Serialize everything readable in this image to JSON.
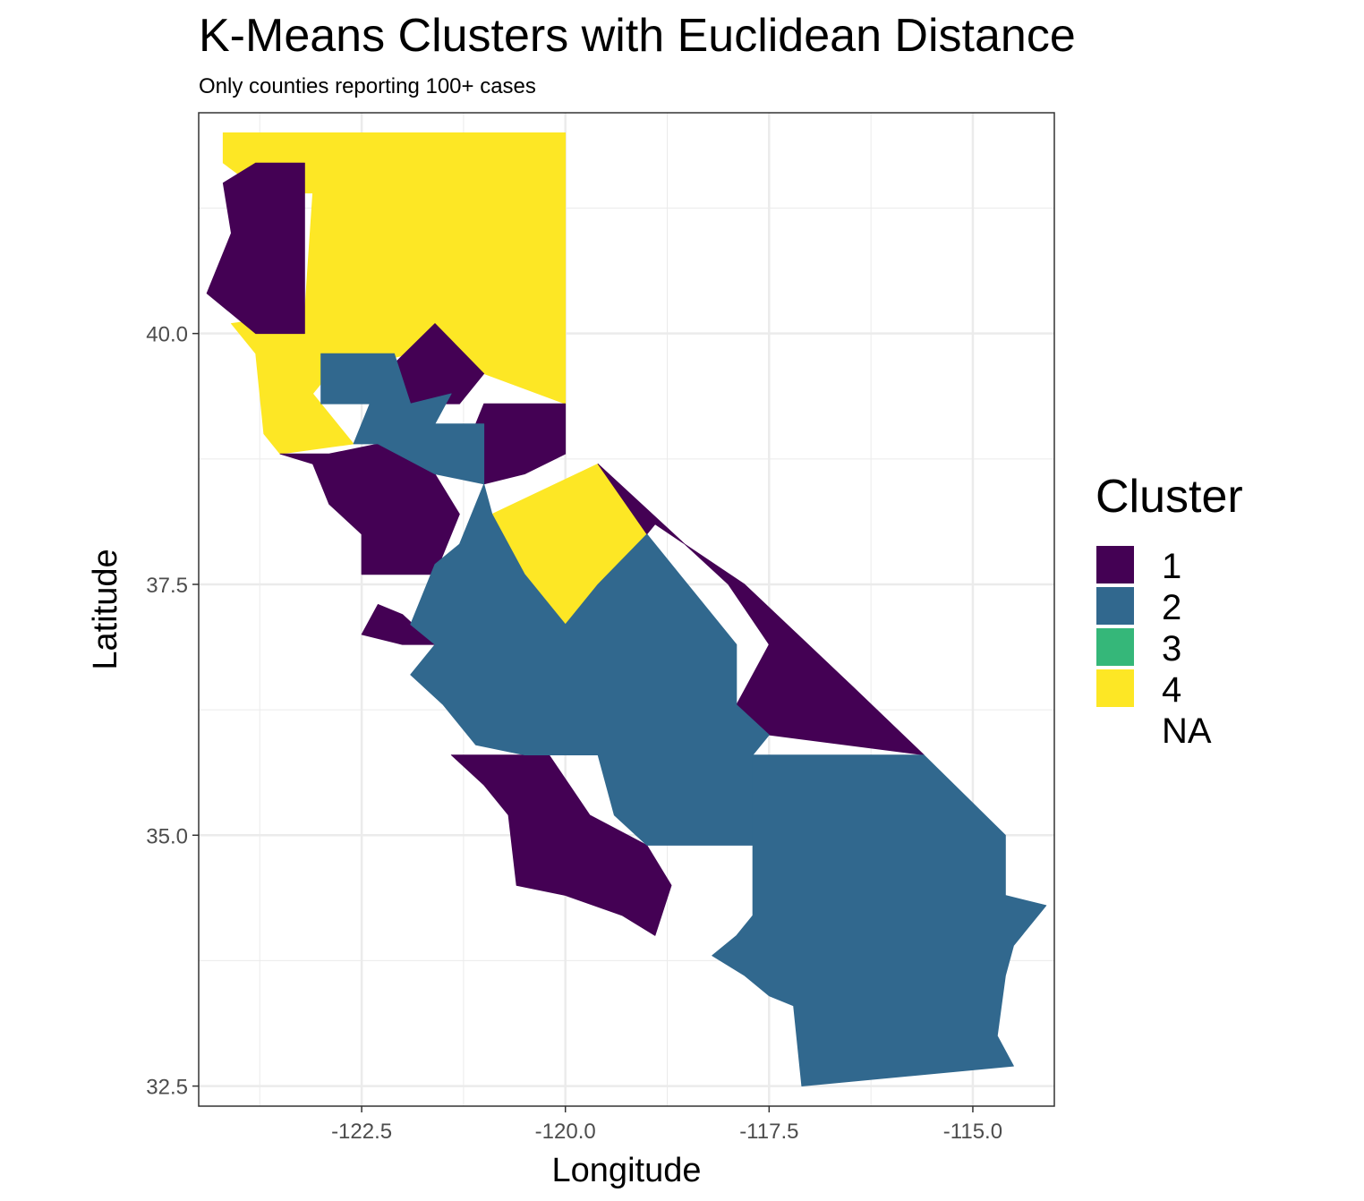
{
  "title": "K-Means Clusters with Euclidean Distance",
  "subtitle": "Only counties reporting 100+ cases",
  "chart_data": {
    "type": "choropleth map",
    "region": "California counties",
    "xlabel": "Longitude",
    "ylabel": "Latitude",
    "xlim": [
      -124.5,
      -114.0
    ],
    "ylim": [
      32.3,
      42.2
    ],
    "x_ticks": [
      -122.5,
      -120.0,
      -117.5,
      -115.0
    ],
    "x_tick_labels": [
      "-122.5",
      "-120.0",
      "-117.5",
      "-115.0"
    ],
    "y_ticks": [
      32.5,
      35.0,
      37.5,
      40.0
    ],
    "y_tick_labels": [
      "32.5",
      "35.0",
      "37.5",
      "40.0"
    ],
    "grid": true,
    "legend": {
      "title": "Cluster",
      "position": "right",
      "entries": [
        {
          "label": "1",
          "color": "#440154"
        },
        {
          "label": "2",
          "color": "#31688e"
        },
        {
          "label": "3",
          "color": "#35b779"
        },
        {
          "label": "4",
          "color": "#fde725"
        },
        {
          "label": "NA",
          "color": null
        }
      ]
    },
    "regions": [
      {
        "cluster": "4",
        "color": "#fde725",
        "coords": [
          [
            -124.2,
            42.0
          ],
          [
            -120.0,
            42.0
          ],
          [
            -120.0,
            39.3
          ],
          [
            -121.0,
            39.6
          ],
          [
            -121.9,
            39.8
          ],
          [
            -122.9,
            39.6
          ],
          [
            -123.1,
            39.4
          ],
          [
            -122.6,
            38.9
          ],
          [
            -123.5,
            38.8
          ],
          [
            -123.7,
            39.0
          ],
          [
            -123.8,
            39.8
          ],
          [
            -124.1,
            40.1
          ],
          [
            -123.2,
            40.2
          ],
          [
            -123.1,
            41.4
          ],
          [
            -123.7,
            41.4
          ],
          [
            -124.2,
            41.7
          ]
        ]
      },
      {
        "cluster": "4",
        "color": "#fde725",
        "coords": [
          [
            -119.6,
            38.7
          ],
          [
            -119.0,
            38.0
          ],
          [
            -119.6,
            37.5
          ],
          [
            -120.0,
            37.1
          ],
          [
            -120.5,
            37.6
          ],
          [
            -120.9,
            38.2
          ]
        ]
      },
      {
        "cluster": "1",
        "color": "#440154",
        "coords": [
          [
            -124.2,
            41.5
          ],
          [
            -124.1,
            41.0
          ],
          [
            -124.4,
            40.4
          ],
          [
            -123.8,
            40.0
          ],
          [
            -123.2,
            40.0
          ],
          [
            -123.2,
            41.7
          ],
          [
            -123.8,
            41.7
          ]
        ]
      },
      {
        "cluster": "1",
        "color": "#440154",
        "coords": [
          [
            -121.6,
            40.1
          ],
          [
            -121.0,
            39.6
          ],
          [
            -121.3,
            39.3
          ],
          [
            -121.9,
            39.3
          ],
          [
            -122.1,
            39.7
          ]
        ]
      },
      {
        "cluster": "1",
        "color": "#440154",
        "coords": [
          [
            -121.0,
            39.3
          ],
          [
            -120.0,
            39.3
          ],
          [
            -120.0,
            38.8
          ],
          [
            -120.5,
            38.6
          ],
          [
            -121.0,
            38.5
          ],
          [
            -121.3,
            38.7
          ]
        ]
      },
      {
        "cluster": "1",
        "color": "#440154",
        "coords": [
          [
            -123.5,
            38.8
          ],
          [
            -122.9,
            38.8
          ],
          [
            -122.3,
            38.9
          ],
          [
            -121.6,
            38.6
          ],
          [
            -121.3,
            38.2
          ],
          [
            -121.6,
            37.6
          ],
          [
            -122.5,
            37.6
          ],
          [
            -122.5,
            38.0
          ],
          [
            -122.9,
            38.3
          ],
          [
            -123.1,
            38.7
          ]
        ]
      },
      {
        "cluster": "1",
        "color": "#440154",
        "coords": [
          [
            -119.6,
            38.7
          ],
          [
            -118.0,
            37.5
          ],
          [
            -117.5,
            36.9
          ],
          [
            -117.9,
            36.3
          ],
          [
            -117.5,
            36.0
          ],
          [
            -115.6,
            35.8
          ],
          [
            -116.5,
            36.5
          ],
          [
            -117.8,
            37.5
          ],
          [
            -118.9,
            38.1
          ],
          [
            -119.0,
            38.0
          ]
        ]
      },
      {
        "cluster": "1",
        "color": "#440154",
        "coords": [
          [
            -122.5,
            37.0
          ],
          [
            -122.0,
            36.9
          ],
          [
            -121.6,
            36.9
          ],
          [
            -122.0,
            37.2
          ],
          [
            -122.3,
            37.3
          ]
        ]
      },
      {
        "cluster": "1",
        "color": "#440154",
        "coords": [
          [
            -121.4,
            35.8
          ],
          [
            -120.2,
            35.8
          ],
          [
            -119.7,
            35.2
          ],
          [
            -119.0,
            34.9
          ],
          [
            -118.7,
            34.5
          ],
          [
            -118.9,
            34.0
          ],
          [
            -119.3,
            34.2
          ],
          [
            -120.0,
            34.4
          ],
          [
            -120.6,
            34.5
          ],
          [
            -120.7,
            35.2
          ],
          [
            -121.0,
            35.5
          ]
        ]
      },
      {
        "cluster": "2",
        "color": "#31688e",
        "coords": [
          [
            -123.0,
            39.8
          ],
          [
            -122.1,
            39.8
          ],
          [
            -121.9,
            39.3
          ],
          [
            -121.4,
            39.4
          ],
          [
            -121.6,
            39.1
          ],
          [
            -121.0,
            39.1
          ],
          [
            -121.0,
            38.5
          ],
          [
            -121.3,
            37.9
          ],
          [
            -121.6,
            37.7
          ],
          [
            -121.8,
            37.3
          ],
          [
            -121.9,
            37.1
          ],
          [
            -121.6,
            36.9
          ],
          [
            -121.9,
            36.6
          ],
          [
            -121.5,
            36.3
          ],
          [
            -121.1,
            35.9
          ],
          [
            -120.5,
            35.8
          ],
          [
            -119.6,
            35.8
          ],
          [
            -119.4,
            35.2
          ],
          [
            -119.0,
            34.9
          ],
          [
            -117.7,
            34.9
          ],
          [
            -117.7,
            35.8
          ],
          [
            -117.5,
            36.0
          ],
          [
            -117.9,
            36.3
          ],
          [
            -117.9,
            36.9
          ],
          [
            -118.5,
            37.5
          ],
          [
            -119.0,
            38.0
          ],
          [
            -119.6,
            37.5
          ],
          [
            -120.0,
            37.1
          ],
          [
            -120.5,
            37.6
          ],
          [
            -120.9,
            38.2
          ],
          [
            -121.0,
            38.5
          ],
          [
            -121.6,
            38.6
          ],
          [
            -122.3,
            38.9
          ],
          [
            -122.6,
            38.9
          ],
          [
            -122.4,
            39.3
          ],
          [
            -123.0,
            39.3
          ]
        ]
      },
      {
        "cluster": "2",
        "color": "#31688e",
        "coords": [
          [
            -117.7,
            35.8
          ],
          [
            -115.6,
            35.8
          ],
          [
            -114.6,
            35.0
          ],
          [
            -114.6,
            34.4
          ],
          [
            -114.1,
            34.3
          ],
          [
            -114.5,
            33.9
          ],
          [
            -114.6,
            33.6
          ],
          [
            -114.7,
            33.0
          ],
          [
            -114.5,
            32.7
          ],
          [
            -117.1,
            32.5
          ],
          [
            -117.2,
            33.3
          ],
          [
            -117.5,
            33.4
          ],
          [
            -117.8,
            33.6
          ],
          [
            -118.2,
            33.8
          ],
          [
            -117.9,
            34.0
          ],
          [
            -117.7,
            34.2
          ]
        ]
      }
    ]
  }
}
